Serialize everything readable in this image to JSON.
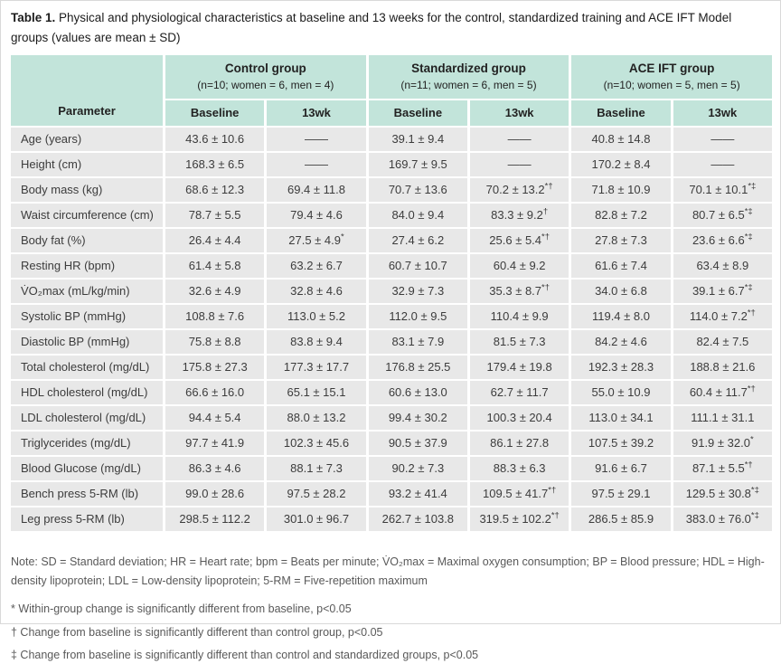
{
  "title": {
    "label": "Table 1.",
    "caption": "Physical and physiological characteristics at baseline and 13 weeks for the control, standardized training and ACE IFT Model groups (values are mean ± SD)"
  },
  "table": {
    "corner_header": "Parameter",
    "groups": [
      {
        "name": "Control group",
        "subtitle": "(n=10; women = 6, men = 4)"
      },
      {
        "name": "Standardized group",
        "subtitle": "(n=11; women = 6, men = 5)"
      },
      {
        "name": "ACE IFT group",
        "subtitle": "(n=10; women = 5, men = 5)"
      }
    ],
    "subheaders": [
      "Baseline",
      "13wk",
      "Baseline",
      "13wk",
      "Baseline",
      "13wk"
    ],
    "rows": [
      [
        "Age (years)",
        "43.6 ± 10.6",
        "——",
        "39.1 ± 9.4",
        "——",
        "40.8 ± 14.8",
        "——"
      ],
      [
        "Height (cm)",
        "168.3 ± 6.5",
        "——",
        "169.7 ± 9.5",
        "——",
        "170.2 ± 8.4",
        "——"
      ],
      [
        "Body mass (kg)",
        "68.6 ± 12.3",
        "69.4 ± 11.8",
        "70.7 ± 13.6",
        "70.2 ± 13.2*†",
        "71.8 ± 10.9",
        "70.1 ± 10.1*‡"
      ],
      [
        "Waist circumference (cm)",
        "78.7 ± 5.5",
        "79.4 ± 4.6",
        "84.0 ± 9.4",
        "83.3 ± 9.2†",
        "82.8 ± 7.2",
        "80.7 ± 6.5*‡"
      ],
      [
        "Body fat (%)",
        "26.4 ± 4.4",
        "27.5 ± 4.9*",
        "27.4 ± 6.2",
        "25.6 ± 5.4*†",
        "27.8 ± 7.3",
        "23.6 ± 6.6*‡"
      ],
      [
        "Resting HR (bpm)",
        "61.4 ± 5.8",
        "63.2 ± 6.7",
        "60.7 ± 10.7",
        "60.4 ± 9.2",
        "61.6 ± 7.4",
        "63.4 ± 8.9"
      ],
      [
        "V̇O₂max (mL/kg/min)",
        "32.6 ± 4.9",
        "32.8 ± 4.6",
        "32.9 ± 7.3",
        "35.3 ± 8.7*†",
        "34.0 ± 6.8",
        "39.1 ± 6.7*‡"
      ],
      [
        "Systolic BP (mmHg)",
        "108.8 ± 7.6",
        "113.0 ± 5.2",
        "112.0 ± 9.5",
        "110.4 ± 9.9",
        "119.4 ± 8.0",
        "114.0 ± 7.2*†"
      ],
      [
        "Diastolic BP (mmHg)",
        "75.8 ± 8.8",
        "83.8 ± 9.4",
        "83.1 ± 7.9",
        "81.5 ± 7.3",
        "84.2 ± 4.6",
        "82.4 ± 7.5"
      ],
      [
        "Total cholesterol (mg/dL)",
        "175.8 ± 27.3",
        "177.3 ± 17.7",
        "176.8 ± 25.5",
        "179.4 ± 19.8",
        "192.3 ± 28.3",
        "188.8 ± 21.6"
      ],
      [
        "HDL cholesterol (mg/dL)",
        "66.6 ± 16.0",
        "65.1 ± 15.1",
        "60.6 ± 13.0",
        "62.7 ± 11.7",
        "55.0 ± 10.9",
        "60.4 ± 11.7*†"
      ],
      [
        "LDL cholesterol (mg/dL)",
        "94.4 ± 5.4",
        "88.0 ± 13.2",
        "99.4 ± 30.2",
        "100.3 ± 20.4",
        "113.0 ± 34.1",
        "111.1 ± 31.1"
      ],
      [
        "Triglycerides (mg/dL)",
        "97.7 ± 41.9",
        "102.3 ± 45.6",
        "90.5 ± 37.9",
        "86.1 ± 27.8",
        "107.5 ± 39.2",
        "91.9 ± 32.0*"
      ],
      [
        "Blood Glucose (mg/dL)",
        "86.3 ± 4.6",
        "88.1 ± 7.3",
        "90.2 ± 7.3",
        "88.3 ± 6.3",
        "91.6 ± 6.7",
        "87.1 ± 5.5*†"
      ],
      [
        "Bench press 5-RM (lb)",
        "99.0 ± 28.6",
        "97.5 ± 28.2",
        "93.2 ± 41.4",
        "109.5 ± 41.7*†",
        "97.5 ± 29.1",
        "129.5 ± 30.8*‡"
      ],
      [
        "Leg press 5-RM (lb)",
        "298.5 ± 112.2",
        "301.0 ± 96.7",
        "262.7 ± 103.8",
        "319.5 ± 102.2*†",
        "286.5 ± 85.9",
        "383.0 ± 76.0*‡"
      ]
    ]
  },
  "notes": {
    "abbreviations": "Note: SD = Standard deviation; HR = Heart rate; bpm = Beats per minute; V̇O₂max = Maximal oxygen consumption; BP = Blood pressure; HDL = High-density lipoprotein; LDL = Low-density lipoprotein; 5-RM = Five-repetition maximum",
    "footnotes": [
      "* Within-group change is significantly different from baseline, p<0.05",
      "† Change from baseline is significantly different than control group, p<0.05",
      "‡ Change from baseline is significantly different than control and standardized groups, p<0.05"
    ]
  },
  "colors": {
    "page_bg": "#ffffff",
    "page_border": "#d9d9d9",
    "header_bg": "#c2e4da",
    "header_text": "#222222",
    "row_bg": "#e8e8e8",
    "cell_text": "#3c3c3c",
    "title_text": "#1c1c1c",
    "note_text": "#595959"
  }
}
